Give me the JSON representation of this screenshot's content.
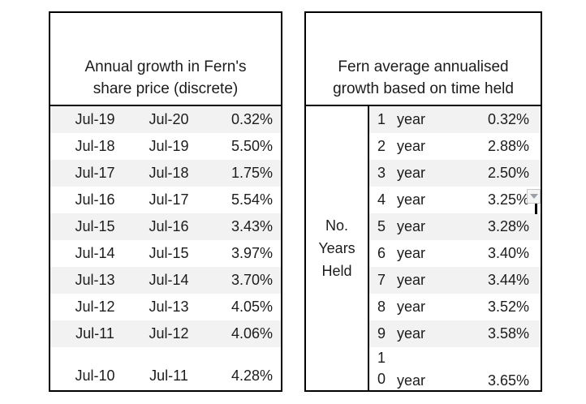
{
  "colors": {
    "background": "#ffffff",
    "table_border": "#000000",
    "banded_row": "#f2f2f2",
    "text": "#1c1c1c",
    "dropdown_background": "#f4f4f4",
    "dropdown_border": "#c8c8c8",
    "dropdown_arrow": "#9aa0a6",
    "text_cursor": "#000000"
  },
  "left_table": {
    "title_line1": "Annual growth in Fern's",
    "title_line2": "share price (discrete)",
    "rows": [
      {
        "period_start": "Jul-19",
        "period_end": "Jul-20",
        "growth": "0.32%"
      },
      {
        "period_start": "Jul-18",
        "period_end": "Jul-19",
        "growth": "5.50%"
      },
      {
        "period_start": "Jul-17",
        "period_end": "Jul-18",
        "growth": "1.75%"
      },
      {
        "period_start": "Jul-16",
        "period_end": "Jul-17",
        "growth": "5.54%"
      },
      {
        "period_start": "Jul-15",
        "period_end": "Jul-16",
        "growth": "3.43%"
      },
      {
        "period_start": "Jul-14",
        "period_end": "Jul-15",
        "growth": "3.97%"
      },
      {
        "period_start": "Jul-13",
        "period_end": "Jul-14",
        "growth": "3.70%"
      },
      {
        "period_start": "Jul-12",
        "period_end": "Jul-13",
        "growth": "4.05%"
      },
      {
        "period_start": "Jul-11",
        "period_end": "Jul-12",
        "growth": "4.06%"
      },
      {
        "period_start": "Jul-10",
        "period_end": "Jul-11",
        "growth": "4.28%"
      }
    ]
  },
  "right_table": {
    "title_line1": "Fern average annualised",
    "title_line2": "growth based on time held",
    "row_label_line1": "No.",
    "row_label_line2": "Years",
    "row_label_line3": "Held",
    "rows": [
      {
        "years": "1",
        "unit": "year",
        "value": "0.32%"
      },
      {
        "years": "2",
        "unit": "year",
        "value": "2.88%"
      },
      {
        "years": "3",
        "unit": "year",
        "value": "2.50%"
      },
      {
        "years": "4",
        "unit": "year",
        "value": "3.25%"
      },
      {
        "years": "5",
        "unit": "year",
        "value": "3.28%"
      },
      {
        "years": "6",
        "unit": "year",
        "value": "3.40%"
      },
      {
        "years": "7",
        "unit": "year",
        "value": "3.44%"
      },
      {
        "years": "8",
        "unit": "year",
        "value": "3.52%"
      },
      {
        "years": "9",
        "unit": "year",
        "value": "3.58%"
      },
      {
        "years": "10",
        "unit": "year",
        "value": "3.65%"
      }
    ]
  }
}
